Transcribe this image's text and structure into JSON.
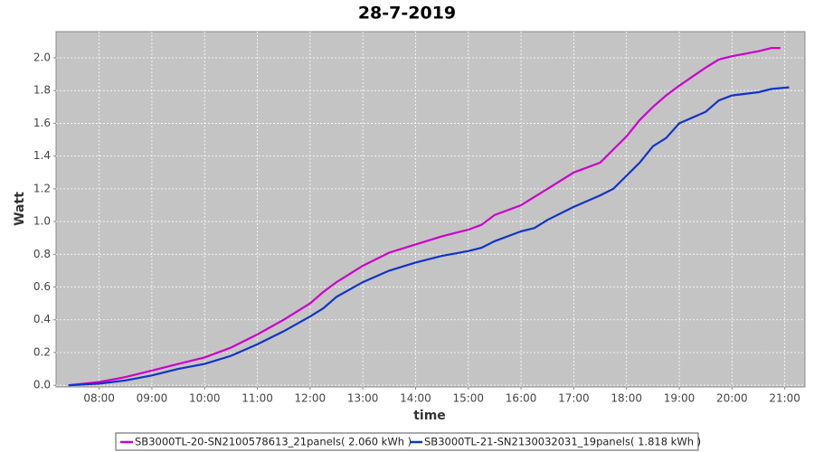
{
  "chart_data": {
    "type": "line",
    "title": "28-7-2019",
    "x_label": "time",
    "y_label": "Watt",
    "xlim": [
      "07:11",
      "21:23"
    ],
    "xticks": [
      "08:00",
      "09:00",
      "10:00",
      "11:00",
      "12:00",
      "13:00",
      "14:00",
      "15:00",
      "16:00",
      "17:00",
      "18:00",
      "19:00",
      "20:00",
      "21:00"
    ],
    "ylim": [
      -0.01,
      2.16
    ],
    "yticks": [
      {
        "value": 0,
        "label": "0.0"
      },
      0.2,
      0.4,
      0.6,
      0.8,
      {
        "value": 1,
        "label": "1.0"
      },
      1.2,
      1.4,
      1.6,
      1.8,
      {
        "value": 2,
        "label": "2.0"
      }
    ],
    "grid": true,
    "legend": "bottom",
    "series": [
      {
        "name": "SB3000TL-20-SN2100578613_21panels( 2.060 kWh )",
        "color": "#cc00cc",
        "x": [
          "07:25",
          "08:00",
          "08:30",
          "09:00",
          "09:30",
          "10:00",
          "10:30",
          "11:00",
          "11:30",
          "12:00",
          "12:15",
          "12:30",
          "13:00",
          "13:30",
          "14:00",
          "14:30",
          "15:00",
          "15:15",
          "15:30",
          "16:00",
          "16:15",
          "16:30",
          "17:00",
          "17:30",
          "17:45",
          "18:00",
          "18:15",
          "18:30",
          "18:45",
          "19:00",
          "19:30",
          "19:45",
          "20:00",
          "20:30",
          "20:45",
          "20:55"
        ],
        "values": [
          0.0,
          0.02,
          0.05,
          0.09,
          0.13,
          0.17,
          0.23,
          0.31,
          0.4,
          0.5,
          0.57,
          0.63,
          0.73,
          0.81,
          0.86,
          0.91,
          0.95,
          0.98,
          1.04,
          1.1,
          1.15,
          1.2,
          1.3,
          1.36,
          1.44,
          1.52,
          1.62,
          1.7,
          1.77,
          1.83,
          1.94,
          1.99,
          2.01,
          2.04,
          2.06,
          2.06
        ]
      },
      {
        "name": "SB3000TL-21-SN2130032031_19panels( 1.818 kWh )",
        "color": "#1133cc",
        "x": [
          "07:25",
          "08:00",
          "08:30",
          "09:00",
          "09:30",
          "10:00",
          "10:30",
          "11:00",
          "11:30",
          "12:00",
          "12:15",
          "12:30",
          "13:00",
          "13:30",
          "14:00",
          "14:30",
          "15:00",
          "15:15",
          "15:30",
          "16:00",
          "16:15",
          "16:30",
          "17:00",
          "17:30",
          "17:45",
          "18:00",
          "18:15",
          "18:30",
          "18:45",
          "19:00",
          "19:30",
          "19:45",
          "20:00",
          "20:30",
          "20:45",
          "21:05"
        ],
        "values": [
          0.0,
          0.01,
          0.03,
          0.06,
          0.1,
          0.13,
          0.18,
          0.25,
          0.33,
          0.42,
          0.47,
          0.54,
          0.63,
          0.7,
          0.75,
          0.79,
          0.82,
          0.84,
          0.88,
          0.94,
          0.96,
          1.01,
          1.09,
          1.16,
          1.2,
          1.28,
          1.36,
          1.46,
          1.51,
          1.6,
          1.67,
          1.74,
          1.77,
          1.79,
          1.81,
          1.82
        ]
      }
    ]
  }
}
